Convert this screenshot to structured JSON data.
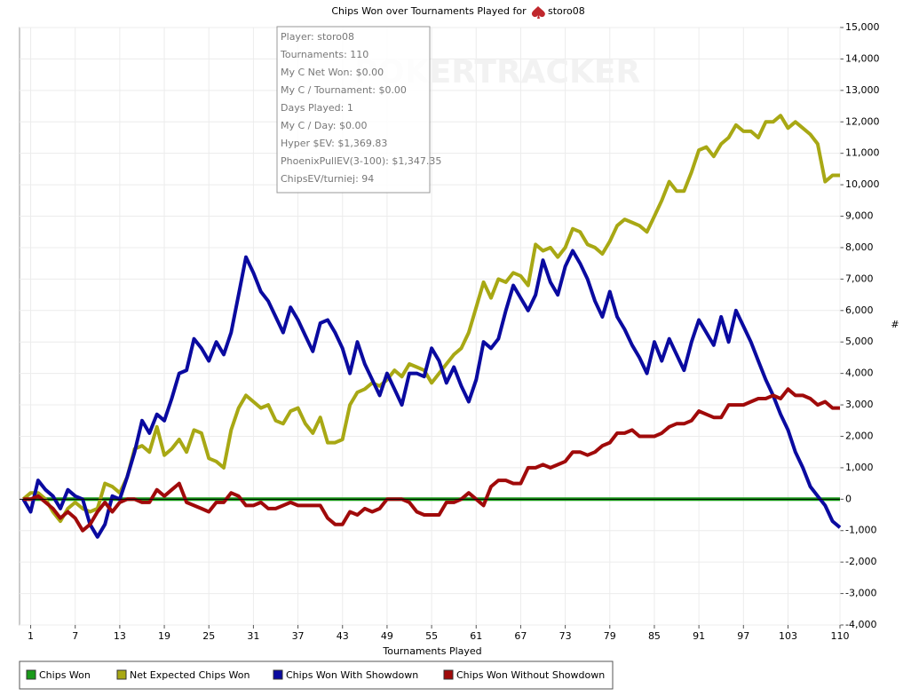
{
  "chart_data": {
    "type": "line",
    "title": "Chips Won over Tournaments Played for",
    "player": "storo08",
    "x_label": "Tournaments Played",
    "y_label": "#",
    "watermark": "POKERTRACKER",
    "tooltip": [
      "Player: storo08",
      "Tournaments: 110",
      "My C Net Won: $0.00",
      "My C / Tournament: $0.00",
      "Days Played: 1",
      "My C / Day: $0.00",
      "Hyper $EV: $1,369.83",
      "PhoenixPullEV(3-100): $1,347.35",
      "ChipsEV/turniej: 94"
    ],
    "x": [
      0,
      1,
      2,
      3,
      4,
      5,
      6,
      7,
      8,
      9,
      10,
      11,
      12,
      13,
      14,
      15,
      16,
      17,
      18,
      19,
      20,
      21,
      22,
      23,
      24,
      25,
      26,
      27,
      28,
      29,
      30,
      31,
      32,
      33,
      34,
      35,
      36,
      37,
      38,
      39,
      40,
      41,
      42,
      43,
      44,
      45,
      46,
      47,
      48,
      49,
      50,
      51,
      52,
      53,
      54,
      55,
      56,
      57,
      58,
      59,
      60,
      61,
      62,
      63,
      64,
      65,
      66,
      67,
      68,
      69,
      70,
      71,
      72,
      73,
      74,
      75,
      76,
      77,
      78,
      79,
      80,
      81,
      82,
      83,
      84,
      85,
      86,
      87,
      88,
      89,
      90,
      91,
      92,
      93,
      94,
      95,
      96,
      97,
      98,
      99,
      100,
      101,
      102,
      103,
      104,
      105,
      106,
      107,
      108,
      109,
      110
    ],
    "xlim": [
      -0.5,
      110
    ],
    "xticks": [
      1,
      7,
      13,
      19,
      25,
      31,
      37,
      43,
      49,
      55,
      61,
      67,
      73,
      79,
      85,
      91,
      97,
      103,
      110
    ],
    "ylim": [
      -4000,
      15000
    ],
    "yticks": [
      {
        "value": -4000,
        "label": "-4,000"
      },
      {
        "value": -3000,
        "label": "-3,000"
      },
      {
        "value": -2000,
        "label": "-2,000"
      },
      {
        "value": -1000,
        "label": "-1,000"
      },
      0,
      {
        "value": 1000,
        "label": "1,000"
      },
      {
        "value": 2000,
        "label": "2,000"
      },
      {
        "value": 3000,
        "label": "3,000"
      },
      {
        "value": 4000,
        "label": "4,000"
      },
      {
        "value": 5000,
        "label": "5,000"
      },
      {
        "value": 6000,
        "label": "6,000"
      },
      {
        "value": 7000,
        "label": "7,000"
      },
      {
        "value": 8000,
        "label": "8,000"
      },
      {
        "value": 9000,
        "label": "9,000"
      },
      {
        "value": 10000,
        "label": "10,000"
      },
      {
        "value": 11000,
        "label": "11,000"
      },
      {
        "value": 12000,
        "label": "12,000"
      },
      {
        "value": 13000,
        "label": "13,000"
      },
      {
        "value": 14000,
        "label": "14,000"
      },
      {
        "value": 15000,
        "label": "15,000"
      }
    ],
    "grid": true,
    "series": [
      {
        "name": "Chips Won",
        "color": "#1a9a1a",
        "values": [
          0,
          0,
          0,
          0,
          0,
          0,
          0,
          0,
          0,
          0,
          0,
          0,
          0,
          0,
          0,
          0,
          0,
          0,
          0,
          0,
          0,
          0,
          0,
          0,
          0,
          0,
          0,
          0,
          0,
          0,
          0,
          0,
          0,
          0,
          0,
          0,
          0,
          0,
          0,
          0,
          0,
          0,
          0,
          0,
          0,
          0,
          0,
          0,
          0,
          0,
          0,
          0,
          0,
          0,
          0,
          0,
          0,
          0,
          0,
          0,
          0,
          0,
          0,
          0,
          0,
          0,
          0,
          0,
          0,
          0,
          0,
          0,
          0,
          0,
          0,
          0,
          0,
          0,
          0,
          0,
          0,
          0,
          0,
          0,
          0,
          0,
          0,
          0,
          0,
          0,
          0,
          0,
          0,
          0,
          0,
          0,
          0,
          0,
          0,
          0,
          0,
          0,
          0,
          0,
          0,
          0,
          0,
          0,
          0,
          0,
          0
        ]
      },
      {
        "name": "Net Expected Chips Won",
        "color": "#a8a814",
        "values": [
          0,
          200,
          200,
          0,
          -400,
          -700,
          -300,
          -100,
          -300,
          -400,
          -300,
          500,
          400,
          200,
          700,
          1600,
          1700,
          1500,
          2300,
          1400,
          1600,
          1900,
          1500,
          2200,
          2100,
          1300,
          1200,
          1000,
          2200,
          2900,
          3300,
          3100,
          2900,
          3000,
          2500,
          2400,
          2800,
          2900,
          2400,
          2100,
          2600,
          1800,
          1800,
          1900,
          3000,
          3400,
          3500,
          3700,
          3600,
          3800,
          4100,
          3900,
          4300,
          4200,
          4100,
          3700,
          4000,
          4300,
          4600,
          4800,
          5300,
          6100,
          6900,
          6400,
          7000,
          6900,
          7200,
          7100,
          6800,
          8100,
          7900,
          8000,
          7700,
          8000,
          8600,
          8500,
          8100,
          8000,
          7800,
          8200,
          8700,
          8900,
          8800,
          8700,
          8500,
          9000,
          9500,
          10100,
          9800,
          9800,
          10400,
          11100,
          11200,
          10900,
          11300,
          11500,
          11900,
          11700,
          11700,
          11500,
          12000,
          12000,
          12200,
          11800,
          12000,
          11800,
          11600,
          11300,
          10100,
          10300,
          10300
        ]
      },
      {
        "name": "Chips Won With Showdown",
        "color": "#0a0aa0",
        "values": [
          0,
          -400,
          600,
          300,
          100,
          -300,
          300,
          100,
          0,
          -800,
          -1200,
          -800,
          100,
          0,
          700,
          1500,
          2500,
          2100,
          2700,
          2500,
          3200,
          4000,
          4100,
          5100,
          4800,
          4400,
          5000,
          4600,
          5300,
          6500,
          7700,
          7200,
          6600,
          6300,
          5800,
          5300,
          6100,
          5700,
          5200,
          4700,
          5600,
          5700,
          5300,
          4800,
          4000,
          5000,
          4300,
          3800,
          3300,
          4000,
          3500,
          3000,
          4000,
          4000,
          3900,
          4800,
          4400,
          3700,
          4200,
          3600,
          3100,
          3800,
          5000,
          4800,
          5100,
          6000,
          6800,
          6400,
          6000,
          6500,
          7600,
          6900,
          6500,
          7400,
          7900,
          7500,
          7000,
          6300,
          5800,
          6600,
          5800,
          5400,
          4900,
          4500,
          4000,
          5000,
          4400,
          5100,
          4600,
          4100,
          5000,
          5700,
          5300,
          4900,
          5800,
          5000,
          6000,
          5500,
          5000,
          4400,
          3800,
          3300,
          2700,
          2200,
          1500,
          1000,
          400,
          100,
          -200,
          -700,
          -900
        ]
      },
      {
        "name": "Chips Won Without Showdown",
        "color": "#a00a0a",
        "values": [
          0,
          0,
          100,
          -100,
          -300,
          -600,
          -400,
          -600,
          -1000,
          -800,
          -400,
          -100,
          -400,
          -100,
          0,
          0,
          -100,
          -100,
          300,
          100,
          300,
          500,
          -100,
          -200,
          -300,
          -400,
          -100,
          -100,
          200,
          100,
          -200,
          -200,
          -100,
          -300,
          -300,
          -200,
          -100,
          -200,
          -200,
          -200,
          -200,
          -600,
          -800,
          -800,
          -400,
          -500,
          -300,
          -400,
          -300,
          0,
          0,
          0,
          -100,
          -400,
          -500,
          -500,
          -500,
          -100,
          -100,
          0,
          200,
          0,
          -200,
          400,
          600,
          600,
          500,
          500,
          1000,
          1000,
          1100,
          1000,
          1100,
          1200,
          1500,
          1500,
          1400,
          1500,
          1700,
          1800,
          2100,
          2100,
          2200,
          2000,
          2000,
          2000,
          2100,
          2300,
          2400,
          2400,
          2500,
          2800,
          2700,
          2600,
          2600,
          3000,
          3000,
          3000,
          3100,
          3200,
          3200,
          3300,
          3200,
          3500,
          3300,
          3300,
          3200,
          3000,
          3100,
          2900,
          2900
        ]
      }
    ]
  }
}
